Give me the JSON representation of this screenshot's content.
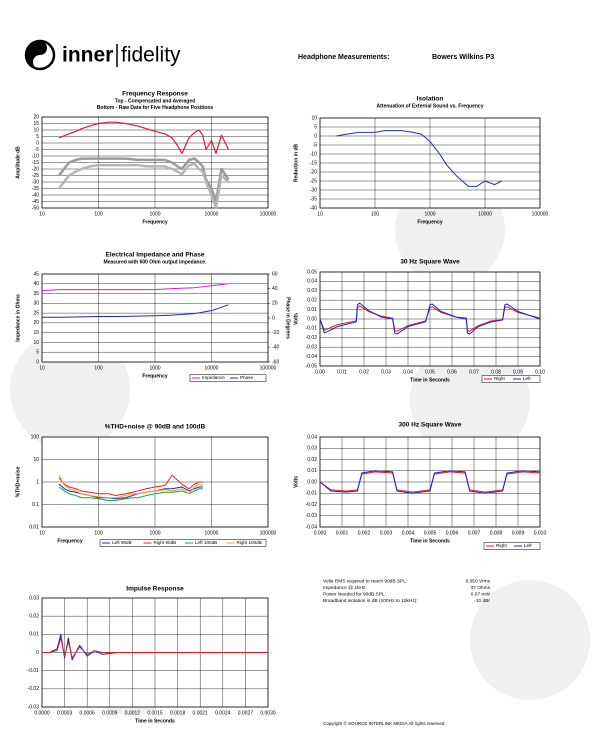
{
  "header": {
    "brand_left": "inner",
    "brand_right": "fidelity",
    "label": "Headphone Measurements:",
    "model": "Bowers Wilkins P3"
  },
  "specs": [
    [
      "Volts RMS required to reach 90dB SPL:",
      "0.050 Vrms"
    ],
    [
      "Impedance @ 1kHz:",
      "37 Ohms"
    ],
    [
      "Power Needed for 90dB SPL:",
      "0.07 mW"
    ],
    [
      "Broadband isolation in dB (100Hz to 10kHz):",
      "-10 dBr"
    ]
  ],
  "footer": "Copyright © SOURCE INTERLINK MEDIA All rights reserved.",
  "chart_data": [
    {
      "type": "line",
      "title": "Frequency Response",
      "subtitle": [
        "Top - Compensated and Averaged",
        "Bottom - Raw Data for Five Headphone Positions"
      ],
      "xlabel": "Frequency",
      "ylabel": "Amplitude dB",
      "xlog": true,
      "xlim": [
        10,
        100000
      ],
      "xticks": [
        10,
        100,
        1000,
        10000,
        100000
      ],
      "ylim": [
        -50,
        20
      ],
      "yticks": [
        20,
        15,
        10,
        5,
        0,
        -5,
        -10,
        -15,
        -20,
        -25,
        -30,
        -35,
        -40,
        -45,
        -50
      ],
      "grid": true,
      "x": [
        20,
        30,
        40,
        50,
        70,
        100,
        150,
        200,
        300,
        500,
        700,
        1000,
        1500,
        2000,
        2500,
        3000,
        4000,
        5000,
        6000,
        7000,
        8000,
        10000,
        12000,
        15000,
        20000
      ],
      "series": [
        {
          "color": "#d0203a",
          "values": [
            4,
            7,
            9,
            11,
            13,
            15,
            16,
            16,
            15,
            13,
            11,
            9,
            7,
            4,
            -2,
            -8,
            4,
            8,
            10,
            6,
            -5,
            2,
            -8,
            6,
            -5
          ]
        },
        {
          "color": "#9a9a9a",
          "values": [
            -25,
            -15,
            -13,
            -12,
            -12,
            -12,
            -12,
            -12,
            -12,
            -13,
            -13,
            -13,
            -13,
            -15,
            -18,
            -20,
            -13,
            -12,
            -15,
            -18,
            -28,
            -35,
            -45,
            -20,
            -28
          ]
        },
        {
          "color": "#b5b5b5",
          "values": [
            -35,
            -25,
            -22,
            -20,
            -18,
            -17,
            -17,
            -17,
            -17,
            -17,
            -18,
            -18,
            -18,
            -20,
            -22,
            -24,
            -17,
            -16,
            -20,
            -22,
            -30,
            -40,
            -50,
            -25,
            -30
          ]
        }
      ]
    },
    {
      "type": "line",
      "title": "Isolation",
      "subtitle": [
        "Attenuation of External Sound vs. Frequency"
      ],
      "xlabel": "Frequency",
      "ylabel": "Reduction in dB",
      "xlog": true,
      "xlim": [
        10,
        100000
      ],
      "xticks": [
        10,
        100,
        1000,
        10000,
        100000
      ],
      "ylim": [
        -40,
        10
      ],
      "yticks": [
        10,
        5,
        0,
        -5,
        -10,
        -15,
        -20,
        -25,
        -30,
        -35,
        -40
      ],
      "grid": true,
      "x": [
        20,
        30,
        50,
        70,
        100,
        150,
        200,
        300,
        500,
        700,
        1000,
        1500,
        2000,
        3000,
        5000,
        7000,
        10000,
        15000,
        20000
      ],
      "series": [
        {
          "color": "#1f2fa0",
          "values": [
            0,
            1,
            2,
            2,
            2,
            3,
            3,
            3,
            2,
            1,
            -3,
            -10,
            -16,
            -22,
            -28,
            -28,
            -25,
            -27,
            -25
          ]
        }
      ]
    },
    {
      "type": "line",
      "title": "Electrical Impedance and Phase",
      "subtitle": [
        "Measured with 600 Ohm output impedance."
      ],
      "xlabel": "Frequency",
      "ylabel": "Impedance in Ohms",
      "y2label": "Phase in Degrees",
      "xlog": true,
      "xlim": [
        10,
        100000
      ],
      "xticks": [
        10,
        100,
        1000,
        10000,
        100000
      ],
      "ylim": [
        0,
        45
      ],
      "yticks": [
        45,
        40,
        35,
        30,
        25,
        20,
        15,
        10,
        5,
        0
      ],
      "y2lim": [
        -60,
        60
      ],
      "y2ticks": [
        60,
        40,
        20,
        0,
        -20,
        -40,
        -60
      ],
      "grid": true,
      "legend": "bottom",
      "x": [
        10,
        20,
        50,
        100,
        200,
        500,
        1000,
        2000,
        5000,
        10000,
        20000
      ],
      "series": [
        {
          "name": "Impedance",
          "color": "#d020d0",
          "values": [
            36.5,
            37,
            37,
            37,
            37,
            37,
            37,
            37.5,
            38,
            39,
            40
          ]
        },
        {
          "name": "Phase",
          "color": "#1f2fa0",
          "axis": "y2",
          "values": [
            1,
            1,
            1.5,
            2,
            2,
            2.5,
            3,
            4,
            6,
            10,
            18
          ]
        }
      ]
    },
    {
      "type": "line",
      "title": "30 Hz Square Wave",
      "xlabel": "Time in Seconds",
      "ylabel": "Volts",
      "xlim": [
        0,
        0.1
      ],
      "xticks": [
        {
          "value": 0,
          "label": "0.00"
        },
        0.01,
        0.02,
        0.03,
        0.04,
        0.05,
        0.06,
        0.07,
        0.08,
        0.09,
        {
          "value": 0.1,
          "label": "0.10"
        }
      ],
      "ylim": [
        -0.05,
        0.05
      ],
      "yticks": [
        0.05,
        0.04,
        0.03,
        0.02,
        0.01,
        {
          "value": 0,
          "label": "0.00"
        },
        -0.01,
        -0.02,
        -0.03,
        -0.04,
        -0.05
      ],
      "grid": true,
      "legend": "bottom",
      "x": [
        0,
        0.002,
        0.008,
        0.0165,
        0.017,
        0.018,
        0.022,
        0.028,
        0.033,
        0.034,
        0.035,
        0.04,
        0.048,
        0.05,
        0.051,
        0.055,
        0.062,
        0.0665,
        0.067,
        0.068,
        0.072,
        0.078,
        0.083,
        0.084,
        0.085,
        0.09,
        0.1
      ],
      "series": [
        {
          "name": "Right",
          "color": "#e02020",
          "values": [
            0,
            -0.012,
            -0.006,
            -0.002,
            0.012,
            0.014,
            0.008,
            0.003,
            0.001,
            -0.012,
            -0.013,
            -0.007,
            -0.002,
            0.012,
            0.013,
            0.007,
            0.002,
            0.001,
            -0.012,
            -0.013,
            -0.007,
            -0.002,
            -0.001,
            0.012,
            0.013,
            0.007,
            0.001
          ]
        },
        {
          "name": "Left",
          "color": "#2020c0",
          "values": [
            0,
            -0.015,
            -0.008,
            -0.003,
            0.015,
            0.017,
            0.009,
            0.002,
            0,
            -0.015,
            -0.016,
            -0.008,
            -0.003,
            0.015,
            0.016,
            0.008,
            0.002,
            0,
            -0.015,
            -0.016,
            -0.008,
            -0.003,
            -0.001,
            0.015,
            0.016,
            0.008,
            0
          ]
        }
      ]
    },
    {
      "type": "line",
      "title": "%THD+noise @ 90dB and 100dB",
      "xlabel": "Frequency",
      "ylabel": "%THD+noise",
      "xlog": true,
      "xlim": [
        10,
        100000
      ],
      "xticks": [
        10,
        100,
        1000,
        10000,
        100000
      ],
      "ylog": true,
      "ylim": [
        0.01,
        100
      ],
      "yticks": [
        100,
        10,
        1,
        0.1,
        0.01
      ],
      "grid": true,
      "legend": "bottom",
      "x": [
        20,
        25,
        30,
        40,
        50,
        70,
        100,
        150,
        200,
        300,
        400,
        500,
        700,
        1000,
        1500,
        2000,
        3000,
        4000,
        5000,
        6000,
        7000
      ],
      "series": [
        {
          "name": "Left 90dB",
          "color": "#2020d0",
          "values": [
            0.8,
            0.5,
            0.4,
            0.35,
            0.3,
            0.25,
            0.2,
            0.2,
            0.18,
            0.2,
            0.25,
            0.3,
            0.35,
            0.4,
            0.5,
            0.5,
            0.6,
            0.4,
            0.5,
            0.6,
            0.6
          ]
        },
        {
          "name": "Right 90dB",
          "color": "#e02020",
          "values": [
            1.5,
            0.8,
            0.6,
            0.5,
            0.4,
            0.35,
            0.3,
            0.3,
            0.25,
            0.3,
            0.35,
            0.4,
            0.5,
            0.6,
            0.7,
            2,
            0.8,
            0.5,
            0.8,
            1,
            1
          ]
        },
        {
          "name": "Left 100dB",
          "color": "#20a040",
          "values": [
            0.6,
            0.4,
            0.3,
            0.25,
            0.2,
            0.2,
            0.18,
            0.15,
            0.15,
            0.18,
            0.2,
            0.2,
            0.25,
            0.3,
            0.35,
            0.35,
            0.4,
            0.3,
            0.4,
            0.5,
            0.5
          ]
        },
        {
          "name": "Right 100dB",
          "color": "#f0a020",
          "values": [
            2,
            0.7,
            0.5,
            0.4,
            0.3,
            0.25,
            0.22,
            0.2,
            0.2,
            0.25,
            0.3,
            0.3,
            0.35,
            0.4,
            0.45,
            0.4,
            0.5,
            0.3,
            0.6,
            0.8,
            0.7
          ]
        }
      ]
    },
    {
      "type": "line",
      "title": "300 Hz Square Wave",
      "xlabel": "Time in Seconds",
      "ylabel": "Volts",
      "xlim": [
        0,
        0.01
      ],
      "xticks": [
        {
          "value": 0,
          "label": "0.000"
        },
        0.001,
        0.002,
        0.003,
        0.004,
        0.005,
        0.006,
        0.007,
        0.008,
        0.009,
        {
          "value": 0.01,
          "label": "0.010"
        }
      ],
      "ylim": [
        -0.04,
        0.04
      ],
      "yticks": [
        0.04,
        0.03,
        0.02,
        0.01,
        {
          "value": 0,
          "label": "0.00"
        },
        -0.01,
        -0.02,
        -0.03,
        -0.04
      ],
      "grid": true,
      "legend": "bottom",
      "x": [
        0,
        0.0005,
        0.0012,
        0.0017,
        0.0019,
        0.0025,
        0.0033,
        0.0035,
        0.0042,
        0.005,
        0.0052,
        0.0059,
        0.0066,
        0.0068,
        0.0075,
        0.0083,
        0.0085,
        0.0092,
        0.01
      ],
      "series": [
        {
          "name": "Right",
          "color": "#e02020",
          "values": [
            0,
            -0.007,
            -0.008,
            -0.007,
            0.007,
            0.009,
            0.008,
            -0.007,
            -0.009,
            -0.007,
            0.007,
            0.009,
            0.008,
            -0.007,
            -0.009,
            -0.007,
            0.007,
            0.009,
            0.008
          ]
        },
        {
          "name": "Left",
          "color": "#2020c0",
          "values": [
            0,
            -0.008,
            -0.009,
            -0.008,
            0.008,
            0.01,
            0.009,
            -0.008,
            -0.01,
            -0.008,
            0.008,
            0.01,
            0.009,
            -0.008,
            -0.01,
            -0.008,
            0.008,
            0.01,
            0.009
          ]
        }
      ]
    },
    {
      "type": "line",
      "title": "Impulse Response",
      "xlabel": "Time in Seconds",
      "xlim": [
        0,
        0.003
      ],
      "xticks": [
        {
          "value": 0,
          "label": "0.0000"
        },
        0.0003,
        0.0006,
        0.0009,
        0.0012,
        0.0015,
        0.0018,
        0.0021,
        0.0024,
        0.0027,
        {
          "value": 0.003,
          "label": "0.0030"
        }
      ],
      "ylim": [
        -0.03,
        0.03
      ],
      "yticks": [
        0.03,
        0.02,
        0.01,
        0,
        -0.01,
        -0.02,
        -0.03
      ],
      "grid": true,
      "x": [
        0,
        0.0001,
        0.0002,
        0.00025,
        0.0003,
        0.00035,
        0.0004,
        0.0005,
        0.0006,
        0.0007,
        0.0008,
        0.001,
        0.0012,
        0.0015,
        0.002,
        0.0025,
        0.003
      ],
      "series": [
        {
          "color": "#2020c0",
          "values": [
            0,
            0,
            0.002,
            0.01,
            -0.003,
            0.008,
            -0.004,
            0.004,
            -0.002,
            0.001,
            -0.001,
            0,
            0,
            0,
            0,
            0,
            0
          ]
        },
        {
          "color": "#e02020",
          "values": [
            0,
            0,
            0.001,
            0.008,
            -0.002,
            0.006,
            -0.003,
            0.003,
            -0.001,
            0.001,
            0,
            0,
            0,
            0,
            0,
            0,
            0
          ]
        }
      ]
    }
  ]
}
